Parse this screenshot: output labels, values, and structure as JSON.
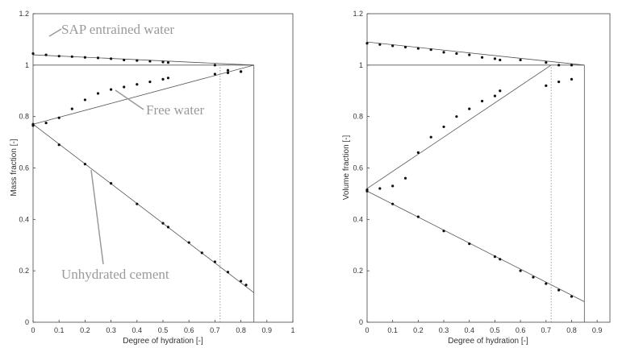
{
  "chart_data": [
    {
      "type": "scatter",
      "xlabel": "Degree of hydration [-]",
      "ylabel": "Mass fraction [-]",
      "xlim": [
        0,
        1
      ],
      "ylim": [
        0,
        1.2
      ],
      "x_ticks": [
        "0",
        "0.1",
        "0.2",
        "0.3",
        "0.4",
        "0.5",
        "0.6",
        "0.7",
        "0.8",
        "0.9",
        "1"
      ],
      "y_ticks": [
        "0",
        "0.2",
        "0.4",
        "0.6",
        "0.8",
        "1",
        "1.2"
      ],
      "annotations": [
        {
          "text": "SAP entrained water",
          "target": [
            0.06,
            1.04
          ]
        },
        {
          "text": "Free water",
          "target": [
            0.3,
            0.88
          ]
        },
        {
          "text": "Unhydrated cement",
          "target": [
            0.22,
            0.6
          ]
        }
      ],
      "lines": [
        {
          "name": "SAP entrained water model",
          "x": [
            0,
            0.85
          ],
          "y": [
            1.04,
            1.0
          ]
        },
        {
          "name": "Upper limit",
          "x": [
            0,
            0.85
          ],
          "y": [
            1.0,
            1.0
          ]
        },
        {
          "name": "Free water model",
          "x": [
            0,
            0.85
          ],
          "y": [
            0.77,
            1.0
          ]
        },
        {
          "name": "Unhydrated cement model",
          "x": [
            0,
            0.85
          ],
          "y": [
            0.77,
            0.115
          ]
        },
        {
          "name": "Final hydration",
          "x": [
            0.85,
            0.85
          ],
          "y": [
            0,
            1.0
          ]
        },
        {
          "name": "Limit hydration (dotted)",
          "x": [
            0.72,
            0.72
          ],
          "y": [
            0,
            1.0
          ]
        }
      ],
      "series": [
        {
          "name": "SAP entrained water",
          "x": [
            0,
            0.05,
            0.1,
            0.15,
            0.2,
            0.25,
            0.3,
            0.35,
            0.4,
            0.45,
            0.5,
            0.52,
            0.7,
            0.75,
            0.8
          ],
          "y": [
            1.045,
            1.04,
            1.035,
            1.033,
            1.03,
            1.028,
            1.025,
            1.02,
            1.018,
            1.015,
            1.012,
            1.01,
            1.0,
            0.98,
            0.975
          ]
        },
        {
          "name": "Free water",
          "x": [
            0,
            0.05,
            0.1,
            0.15,
            0.2,
            0.25,
            0.3,
            0.35,
            0.4,
            0.45,
            0.5,
            0.52,
            0.7,
            0.75,
            0.8
          ],
          "y": [
            0.765,
            0.775,
            0.795,
            0.83,
            0.865,
            0.89,
            0.905,
            0.915,
            0.925,
            0.935,
            0.945,
            0.95,
            0.965,
            0.97,
            0.975
          ]
        },
        {
          "name": "Unhydrated cement",
          "x": [
            0,
            0.1,
            0.2,
            0.3,
            0.4,
            0.5,
            0.52,
            0.6,
            0.65,
            0.7,
            0.75,
            0.8,
            0.82
          ],
          "y": [
            0.77,
            0.69,
            0.615,
            0.54,
            0.46,
            0.385,
            0.37,
            0.31,
            0.27,
            0.235,
            0.195,
            0.16,
            0.145
          ]
        }
      ]
    },
    {
      "type": "scatter",
      "xlabel": "Degree of hydration [-]",
      "ylabel": "Volume fraction [-]",
      "xlim": [
        0,
        0.95
      ],
      "ylim": [
        0,
        1.2
      ],
      "x_ticks": [
        "0",
        "0.1",
        "0.2",
        "0.3",
        "0.4",
        "0.5",
        "0.6",
        "0.7",
        "0.8",
        "0.9"
      ],
      "y_ticks": [
        "0",
        "0.2",
        "0.4",
        "0.6",
        "0.8",
        "1",
        "1.2"
      ],
      "lines": [
        {
          "name": "SAP entrained water model",
          "x": [
            0,
            0.85
          ],
          "y": [
            1.09,
            1.0
          ]
        },
        {
          "name": "Upper limit",
          "x": [
            0,
            0.85
          ],
          "y": [
            1.0,
            1.0
          ]
        },
        {
          "name": "Free water model",
          "x": [
            0,
            0.72
          ],
          "y": [
            0.52,
            1.0
          ]
        },
        {
          "name": "Unhydrated cement model",
          "x": [
            0,
            0.85
          ],
          "y": [
            0.51,
            0.08
          ]
        },
        {
          "name": "Final hydration",
          "x": [
            0.85,
            0.85
          ],
          "y": [
            0,
            1.0
          ]
        },
        {
          "name": "Limit hydration (dotted)",
          "x": [
            0.72,
            0.72
          ],
          "y": [
            0,
            1.0
          ]
        }
      ],
      "series": [
        {
          "name": "SAP entrained water",
          "x": [
            0,
            0.05,
            0.1,
            0.15,
            0.2,
            0.25,
            0.3,
            0.35,
            0.4,
            0.45,
            0.5,
            0.52,
            0.6,
            0.7,
            0.75,
            0.8
          ],
          "y": [
            1.085,
            1.08,
            1.075,
            1.07,
            1.065,
            1.06,
            1.05,
            1.045,
            1.04,
            1.03,
            1.025,
            1.02,
            1.02,
            1.01,
            1.0,
            1.0
          ]
        },
        {
          "name": "Free water",
          "x": [
            0,
            0.05,
            0.1,
            0.15,
            0.2,
            0.25,
            0.3,
            0.35,
            0.4,
            0.45,
            0.5,
            0.52,
            0.7,
            0.75,
            0.8
          ],
          "y": [
            0.515,
            0.52,
            0.53,
            0.56,
            0.66,
            0.72,
            0.76,
            0.8,
            0.83,
            0.86,
            0.88,
            0.9,
            0.92,
            0.935,
            0.945
          ]
        },
        {
          "name": "Unhydrated cement",
          "x": [
            0,
            0.1,
            0.2,
            0.3,
            0.4,
            0.5,
            0.52,
            0.6,
            0.65,
            0.7,
            0.75,
            0.8
          ],
          "y": [
            0.51,
            0.46,
            0.41,
            0.355,
            0.305,
            0.255,
            0.245,
            0.2,
            0.175,
            0.15,
            0.125,
            0.1
          ]
        }
      ]
    }
  ]
}
